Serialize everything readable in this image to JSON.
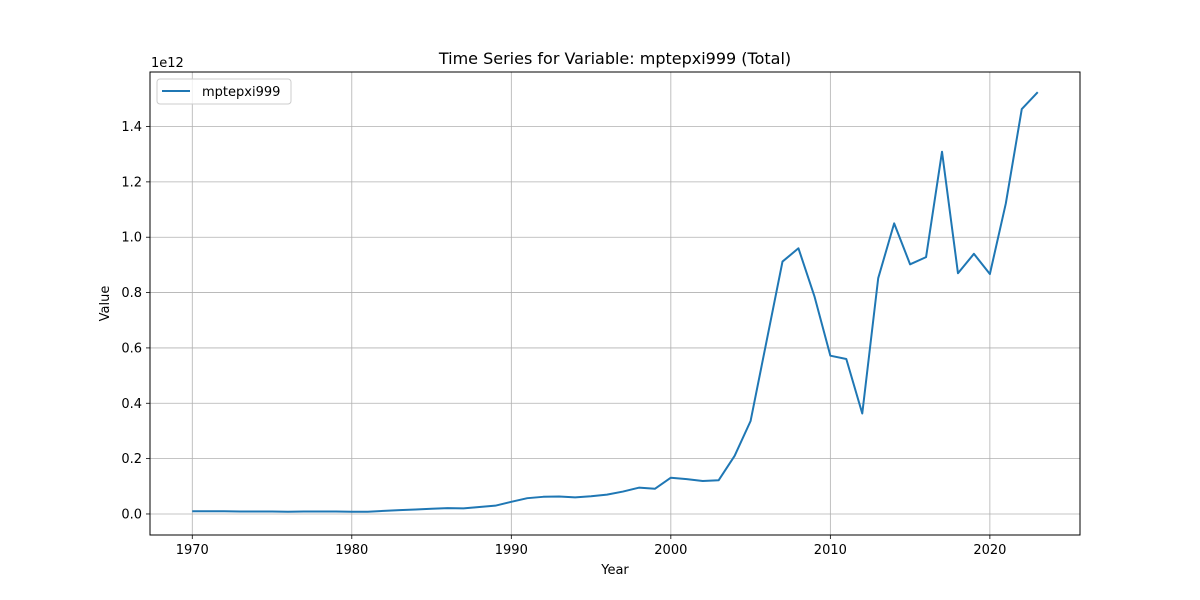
{
  "chart_data": {
    "type": "line",
    "title": "Time Series for Variable: mptepxi999 (Total)",
    "xlabel": "Year",
    "ylabel": "Value",
    "y_offset_label": "1e12",
    "y_scale": 1000000000000.0,
    "xlim": [
      1967.35,
      2025.65
    ],
    "ylim": [
      -0.076,
      1.597
    ],
    "x_ticks": [
      1970,
      1980,
      1990,
      2000,
      2010,
      2020
    ],
    "y_ticks": [
      0.0,
      0.2,
      0.4,
      0.6,
      0.8,
      1.0,
      1.2,
      1.4
    ],
    "y_tick_labels": [
      "0.0",
      "0.2",
      "0.4",
      "0.6",
      "0.8",
      "1.0",
      "1.2",
      "1.4"
    ],
    "grid": true,
    "legend_position": "upper-left",
    "series": [
      {
        "name": "mptepxi999",
        "color": "#1f77b4",
        "x": [
          1970,
          1971,
          1972,
          1973,
          1974,
          1975,
          1976,
          1977,
          1978,
          1979,
          1980,
          1981,
          1982,
          1983,
          1984,
          1985,
          1986,
          1987,
          1988,
          1989,
          1990,
          1991,
          1992,
          1993,
          1994,
          1995,
          1996,
          1997,
          1998,
          1999,
          2000,
          2001,
          2002,
          2003,
          2004,
          2005,
          2006,
          2007,
          2008,
          2009,
          2010,
          2011,
          2012,
          2013,
          2014,
          2015,
          2016,
          2017,
          2018,
          2019,
          2020,
          2021,
          2022,
          2023
        ],
        "y": [
          0.01,
          0.01,
          0.01,
          0.009,
          0.009,
          0.009,
          0.008,
          0.009,
          0.009,
          0.009,
          0.008,
          0.008,
          0.011,
          0.014,
          0.016,
          0.019,
          0.021,
          0.02,
          0.025,
          0.03,
          0.044,
          0.057,
          0.062,
          0.063,
          0.06,
          0.064,
          0.07,
          0.081,
          0.095,
          0.091,
          0.131,
          0.126,
          0.119,
          0.122,
          0.21,
          0.336,
          0.624,
          0.912,
          0.96,
          0.787,
          0.572,
          0.56,
          0.363,
          0.852,
          1.05,
          0.902,
          0.928,
          1.309,
          0.87,
          0.94,
          0.867,
          1.122,
          1.463,
          1.524
        ]
      }
    ]
  }
}
